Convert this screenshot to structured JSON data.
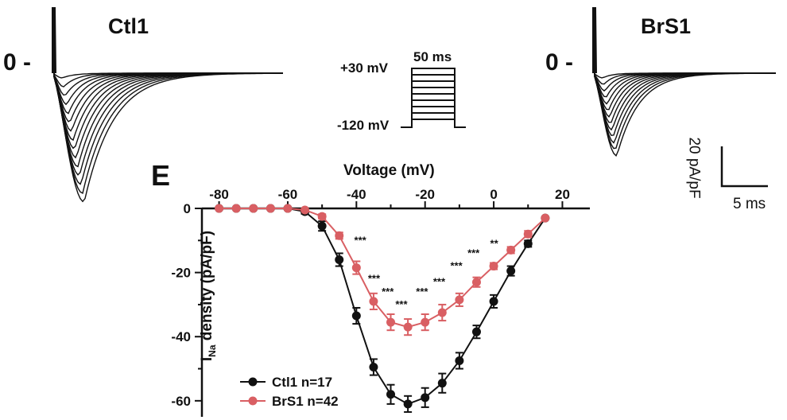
{
  "figure": {
    "panel_letter": "E",
    "traces_ctl": {
      "title": "Ctl1",
      "zero_label": "0 -"
    },
    "traces_brs": {
      "title": "BrS1",
      "zero_label": "0 -"
    },
    "protocol": {
      "top_label": "+30 mV",
      "bottom_label": "-120 mV",
      "duration_label": "50 ms"
    },
    "scale_bar": {
      "vertical_label": "20 pA/pF",
      "horizontal_label": "5 ms"
    }
  },
  "chart_data": {
    "type": "line",
    "title": "",
    "xlabel": "Voltage (mV)",
    "ylabel_main": "I",
    "ylabel_sub": "Na",
    "ylabel_rest": " density (pA/pF)",
    "xlim": [
      -85,
      28
    ],
    "ylim": [
      -65,
      0
    ],
    "xticks": [
      -80,
      -60,
      -40,
      -20,
      0,
      20
    ],
    "yticks": [
      0,
      -20,
      -40,
      -60
    ],
    "x": [
      -80,
      -75,
      -70,
      -65,
      -60,
      -55,
      -50,
      -45,
      -40,
      -35,
      -30,
      -25,
      -20,
      -15,
      -10,
      -5,
      0,
      5,
      10,
      15
    ],
    "series": [
      {
        "name": "Ctl1 n=17",
        "color": "#111111",
        "values": [
          0,
          0,
          0,
          0,
          0,
          -1,
          -5.5,
          -16,
          -33.5,
          -49.5,
          -58,
          -61,
          -59,
          -54.5,
          -47.5,
          -38.5,
          -29,
          -19.5,
          -11,
          -3
        ],
        "errors": [
          0.5,
          0.5,
          0.5,
          0.5,
          0.5,
          0.7,
          1.5,
          2.0,
          2.5,
          2.5,
          3.0,
          2.5,
          3.0,
          3.0,
          2.5,
          2.0,
          2.0,
          1.5,
          1.0,
          0.5
        ]
      },
      {
        "name": "BrS1 n=42",
        "color": "#d95f63",
        "values": [
          0,
          0,
          0,
          0,
          0,
          -0.5,
          -2.5,
          -8.5,
          -18.5,
          -29,
          -35.5,
          -37,
          -35.5,
          -32.5,
          -28.5,
          -23,
          -18,
          -13,
          -8,
          -3
        ],
        "errors": [
          0.5,
          0.5,
          0.5,
          0.5,
          0.5,
          0.5,
          0.7,
          1.0,
          2.0,
          2.5,
          2.5,
          2.5,
          2.5,
          2.5,
          2.0,
          1.5,
          1.0,
          1.0,
          1.0,
          0.5
        ]
      }
    ],
    "annotations": [
      {
        "text": "***",
        "x": -39,
        "y": -11
      },
      {
        "text": "***",
        "x": -35,
        "y": -23
      },
      {
        "text": "***",
        "x": -31,
        "y": -27
      },
      {
        "text": "***",
        "x": -27,
        "y": -31
      },
      {
        "text": "***",
        "x": -21,
        "y": -27
      },
      {
        "text": "***",
        "x": -16,
        "y": -24
      },
      {
        "text": "***",
        "x": -11,
        "y": -19
      },
      {
        "text": "***",
        "x": -6,
        "y": -15
      },
      {
        "text": "**",
        "x": 0,
        "y": -12
      }
    ],
    "legend_position": "bottom-left"
  }
}
